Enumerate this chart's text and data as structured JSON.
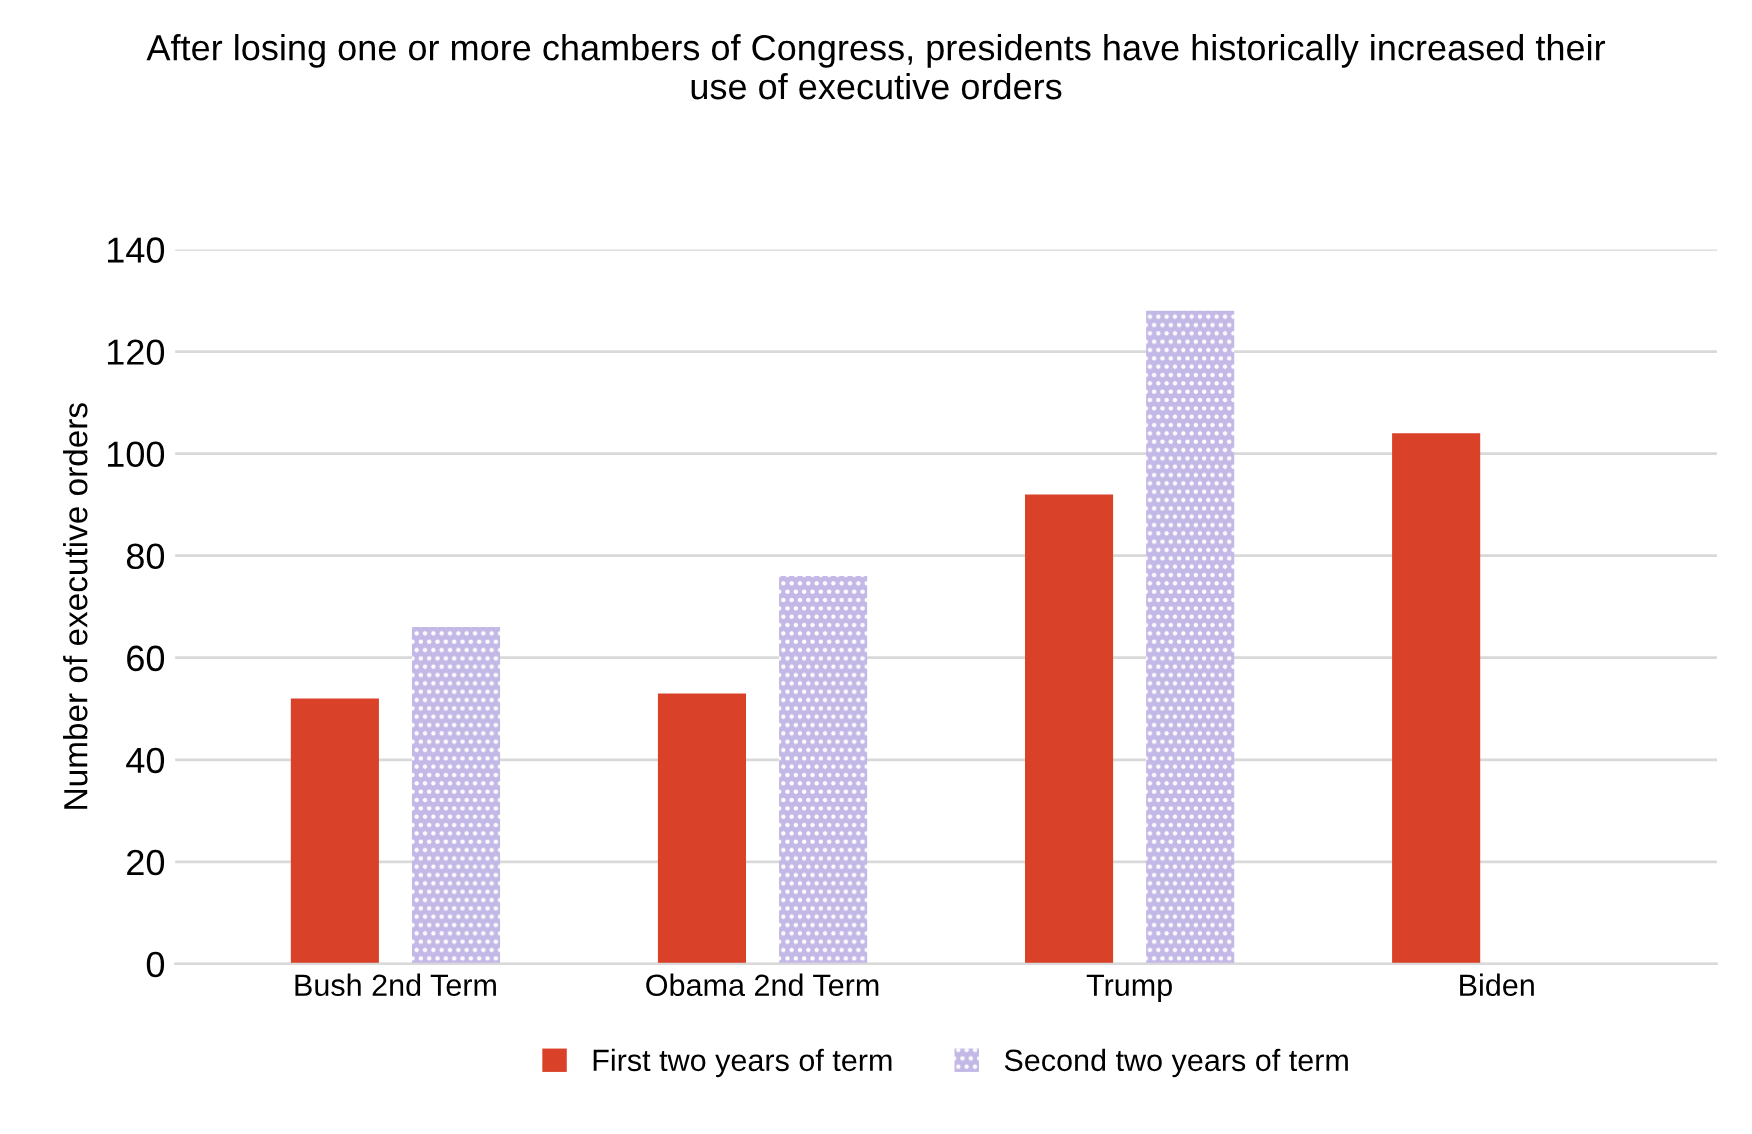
{
  "chart_data": {
    "type": "bar",
    "title": "After losing one or more chambers of Congress, presidents have historically increased their\nuse of executive orders",
    "ylabel": "Number of executive orders",
    "categories": [
      "Bush 2nd Term",
      "Obama 2nd Term",
      "Trump",
      "Biden"
    ],
    "series": [
      {
        "name": "First two years of term",
        "color": "#d94128",
        "values": [
          52,
          53,
          92,
          104
        ]
      },
      {
        "name": "Second two years of term",
        "color": "#c3b8e6",
        "values": [
          66,
          76,
          128,
          null
        ]
      }
    ],
    "ylim": [
      0,
      140
    ],
    "yticks": [
      0,
      20,
      40,
      60,
      80,
      100,
      120,
      140
    ],
    "grid": "y",
    "legend": "bottom"
  }
}
